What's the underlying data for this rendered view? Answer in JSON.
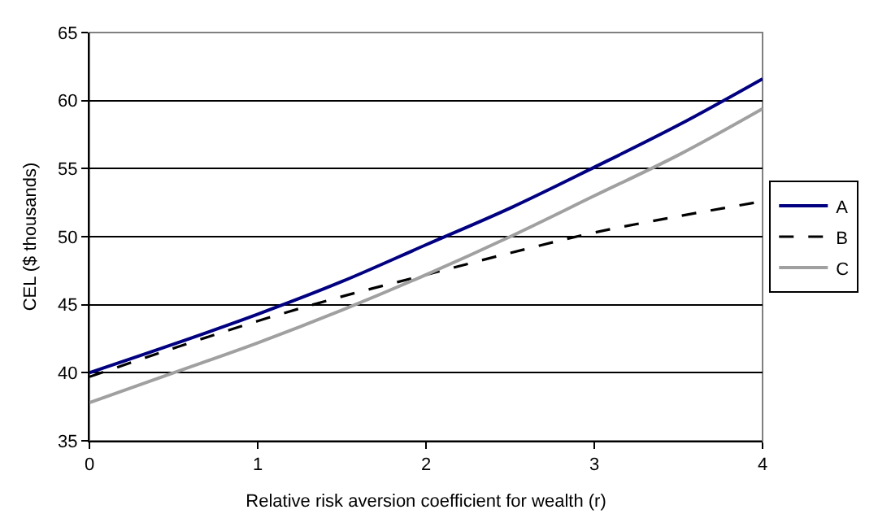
{
  "chart_data": {
    "type": "line",
    "xlabel": "Relative risk aversion coefficient for wealth (r)",
    "ylabel": "CEL ($ thousands)",
    "x": [
      0,
      0.5,
      1,
      1.5,
      2,
      2.5,
      3,
      3.5,
      4
    ],
    "series": [
      {
        "name": "A",
        "color": "#000080",
        "line_style": "solid",
        "values": [
          40,
          42.1,
          44.3,
          46.7,
          49.4,
          52.1,
          55.1,
          58.2,
          61.6
        ]
      },
      {
        "name": "B",
        "color": "#000000",
        "line_style": "dashed",
        "values": [
          39.7,
          41.8,
          43.8,
          45.6,
          47.2,
          48.8,
          50.3,
          51.5,
          52.6
        ]
      },
      {
        "name": "C",
        "color": "#a0a0a0",
        "line_style": "solid",
        "values": [
          37.8,
          40.0,
          42.2,
          44.6,
          47.2,
          50.0,
          53.0,
          56.0,
          59.4
        ]
      }
    ],
    "xlim": [
      0,
      4
    ],
    "xticks": [
      0,
      1,
      2,
      3,
      4
    ],
    "ylim": [
      35,
      65
    ],
    "yticks": [
      35,
      40,
      45,
      50,
      55,
      60,
      65
    ],
    "grid": "y",
    "legend": "right",
    "marker": "none"
  }
}
